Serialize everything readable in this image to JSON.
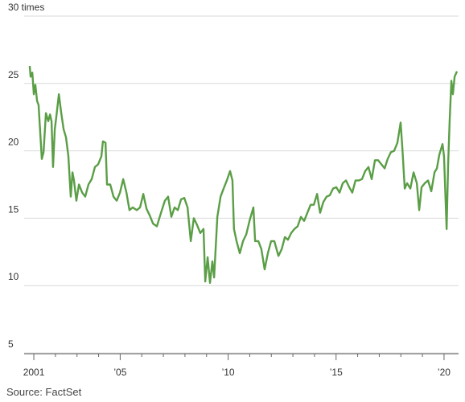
{
  "chart_data": {
    "type": "line",
    "source": "Source: FactSet",
    "color": "#5a9e46",
    "grid": true,
    "xlim": [
      2000.7,
      2020.8
    ],
    "xticks": [
      {
        "value": 2001,
        "label": "2001"
      },
      {
        "value": 2005,
        "label": "’05"
      },
      {
        "value": 2010,
        "label": "’10"
      },
      {
        "value": 2015,
        "label": "’15"
      },
      {
        "value": 2020,
        "label": "’20"
      }
    ],
    "xminor_ticks": [
      2002,
      2003,
      2004,
      2006,
      2007,
      2008,
      2009,
      2011,
      2012,
      2013,
      2014,
      2016,
      2017,
      2018,
      2019
    ],
    "ylim": [
      5,
      30
    ],
    "yticks": [
      5,
      10,
      15,
      20,
      25,
      {
        "value": 30,
        "label": "30 times"
      }
    ],
    "x": [
      2000.81,
      2000.85,
      2000.93,
      2001.0,
      2001.07,
      2001.15,
      2001.22,
      2001.37,
      2001.45,
      2001.56,
      2001.67,
      2001.75,
      2001.82,
      2001.89,
      2001.97,
      2002.04,
      2002.16,
      2002.27,
      2002.38,
      2002.49,
      2002.6,
      2002.71,
      2002.79,
      2002.86,
      2002.97,
      2003.09,
      2003.24,
      2003.38,
      2003.53,
      2003.68,
      2003.83,
      2003.98,
      2004.13,
      2004.2,
      2004.32,
      2004.39,
      2004.54,
      2004.69,
      2004.84,
      2004.99,
      2005.14,
      2005.29,
      2005.43,
      2005.58,
      2005.77,
      2005.92,
      2006.07,
      2006.22,
      2006.37,
      2006.52,
      2006.7,
      2006.89,
      2007.07,
      2007.22,
      2007.37,
      2007.52,
      2007.67,
      2007.82,
      2007.97,
      2008.12,
      2008.27,
      2008.41,
      2008.56,
      2008.71,
      2008.86,
      2008.94,
      2009.05,
      2009.16,
      2009.27,
      2009.35,
      2009.5,
      2009.65,
      2009.79,
      2009.94,
      2010.09,
      2010.2,
      2010.27,
      2010.39,
      2010.54,
      2010.69,
      2010.84,
      2010.99,
      2011.17,
      2011.25,
      2011.4,
      2011.54,
      2011.69,
      2011.84,
      2011.99,
      2012.14,
      2012.33,
      2012.48,
      2012.63,
      2012.77,
      2012.92,
      2013.07,
      2013.22,
      2013.37,
      2013.52,
      2013.67,
      2013.82,
      2013.97,
      2014.12,
      2014.26,
      2014.41,
      2014.56,
      2014.71,
      2014.86,
      2015.01,
      2015.16,
      2015.31,
      2015.46,
      2015.61,
      2015.75,
      2015.9,
      2016.05,
      2016.2,
      2016.35,
      2016.5,
      2016.65,
      2016.8,
      2016.95,
      2017.1,
      2017.25,
      2017.39,
      2017.54,
      2017.69,
      2017.84,
      2017.99,
      2018.07,
      2018.18,
      2018.29,
      2018.44,
      2018.59,
      2018.74,
      2018.85,
      2018.96,
      2019.11,
      2019.26,
      2019.41,
      2019.56,
      2019.67,
      2019.78,
      2019.93,
      2020.0,
      2020.12,
      2020.19,
      2020.26,
      2020.34,
      2020.41,
      2020.49,
      2020.6
    ],
    "values": [
      26.3,
      25.5,
      25.8,
      24.2,
      24.9,
      23.7,
      23.4,
      19.4,
      19.9,
      22.8,
      22.2,
      22.7,
      22.2,
      18.8,
      21.6,
      22.5,
      24.2,
      22.8,
      21.6,
      21.0,
      19.6,
      16.6,
      18.4,
      17.8,
      16.3,
      17.5,
      16.9,
      16.6,
      17.5,
      17.9,
      18.8,
      19.0,
      19.6,
      20.7,
      20.6,
      17.5,
      17.5,
      16.6,
      16.3,
      16.9,
      17.9,
      16.9,
      15.6,
      15.8,
      15.6,
      15.8,
      16.8,
      15.7,
      15.2,
      14.6,
      14.4,
      15.4,
      16.3,
      16.6,
      15.1,
      15.8,
      15.6,
      16.4,
      16.5,
      15.8,
      13.3,
      15.0,
      14.5,
      13.9,
      14.2,
      10.3,
      12.1,
      10.2,
      11.8,
      10.6,
      15.1,
      16.6,
      17.2,
      17.8,
      18.5,
      17.8,
      14.2,
      13.3,
      12.4,
      13.3,
      13.8,
      14.8,
      15.8,
      13.3,
      13.3,
      12.7,
      11.2,
      12.4,
      13.3,
      13.3,
      12.2,
      12.7,
      13.6,
      13.4,
      13.9,
      14.2,
      14.4,
      15.1,
      14.8,
      15.4,
      16.0,
      16.0,
      16.8,
      15.4,
      16.2,
      16.6,
      16.7,
      17.2,
      17.3,
      16.9,
      17.6,
      17.8,
      17.3,
      16.9,
      17.8,
      17.8,
      17.9,
      18.5,
      18.8,
      17.9,
      19.3,
      19.3,
      19.0,
      18.7,
      19.4,
      19.9,
      20.0,
      20.6,
      22.1,
      20.2,
      17.2,
      17.6,
      17.2,
      18.4,
      17.6,
      15.6,
      17.3,
      17.6,
      17.8,
      17.0,
      18.4,
      18.7,
      19.7,
      20.5,
      19.6,
      14.2,
      19.0,
      22.2,
      25.2,
      24.2,
      25.5,
      25.9
    ]
  }
}
